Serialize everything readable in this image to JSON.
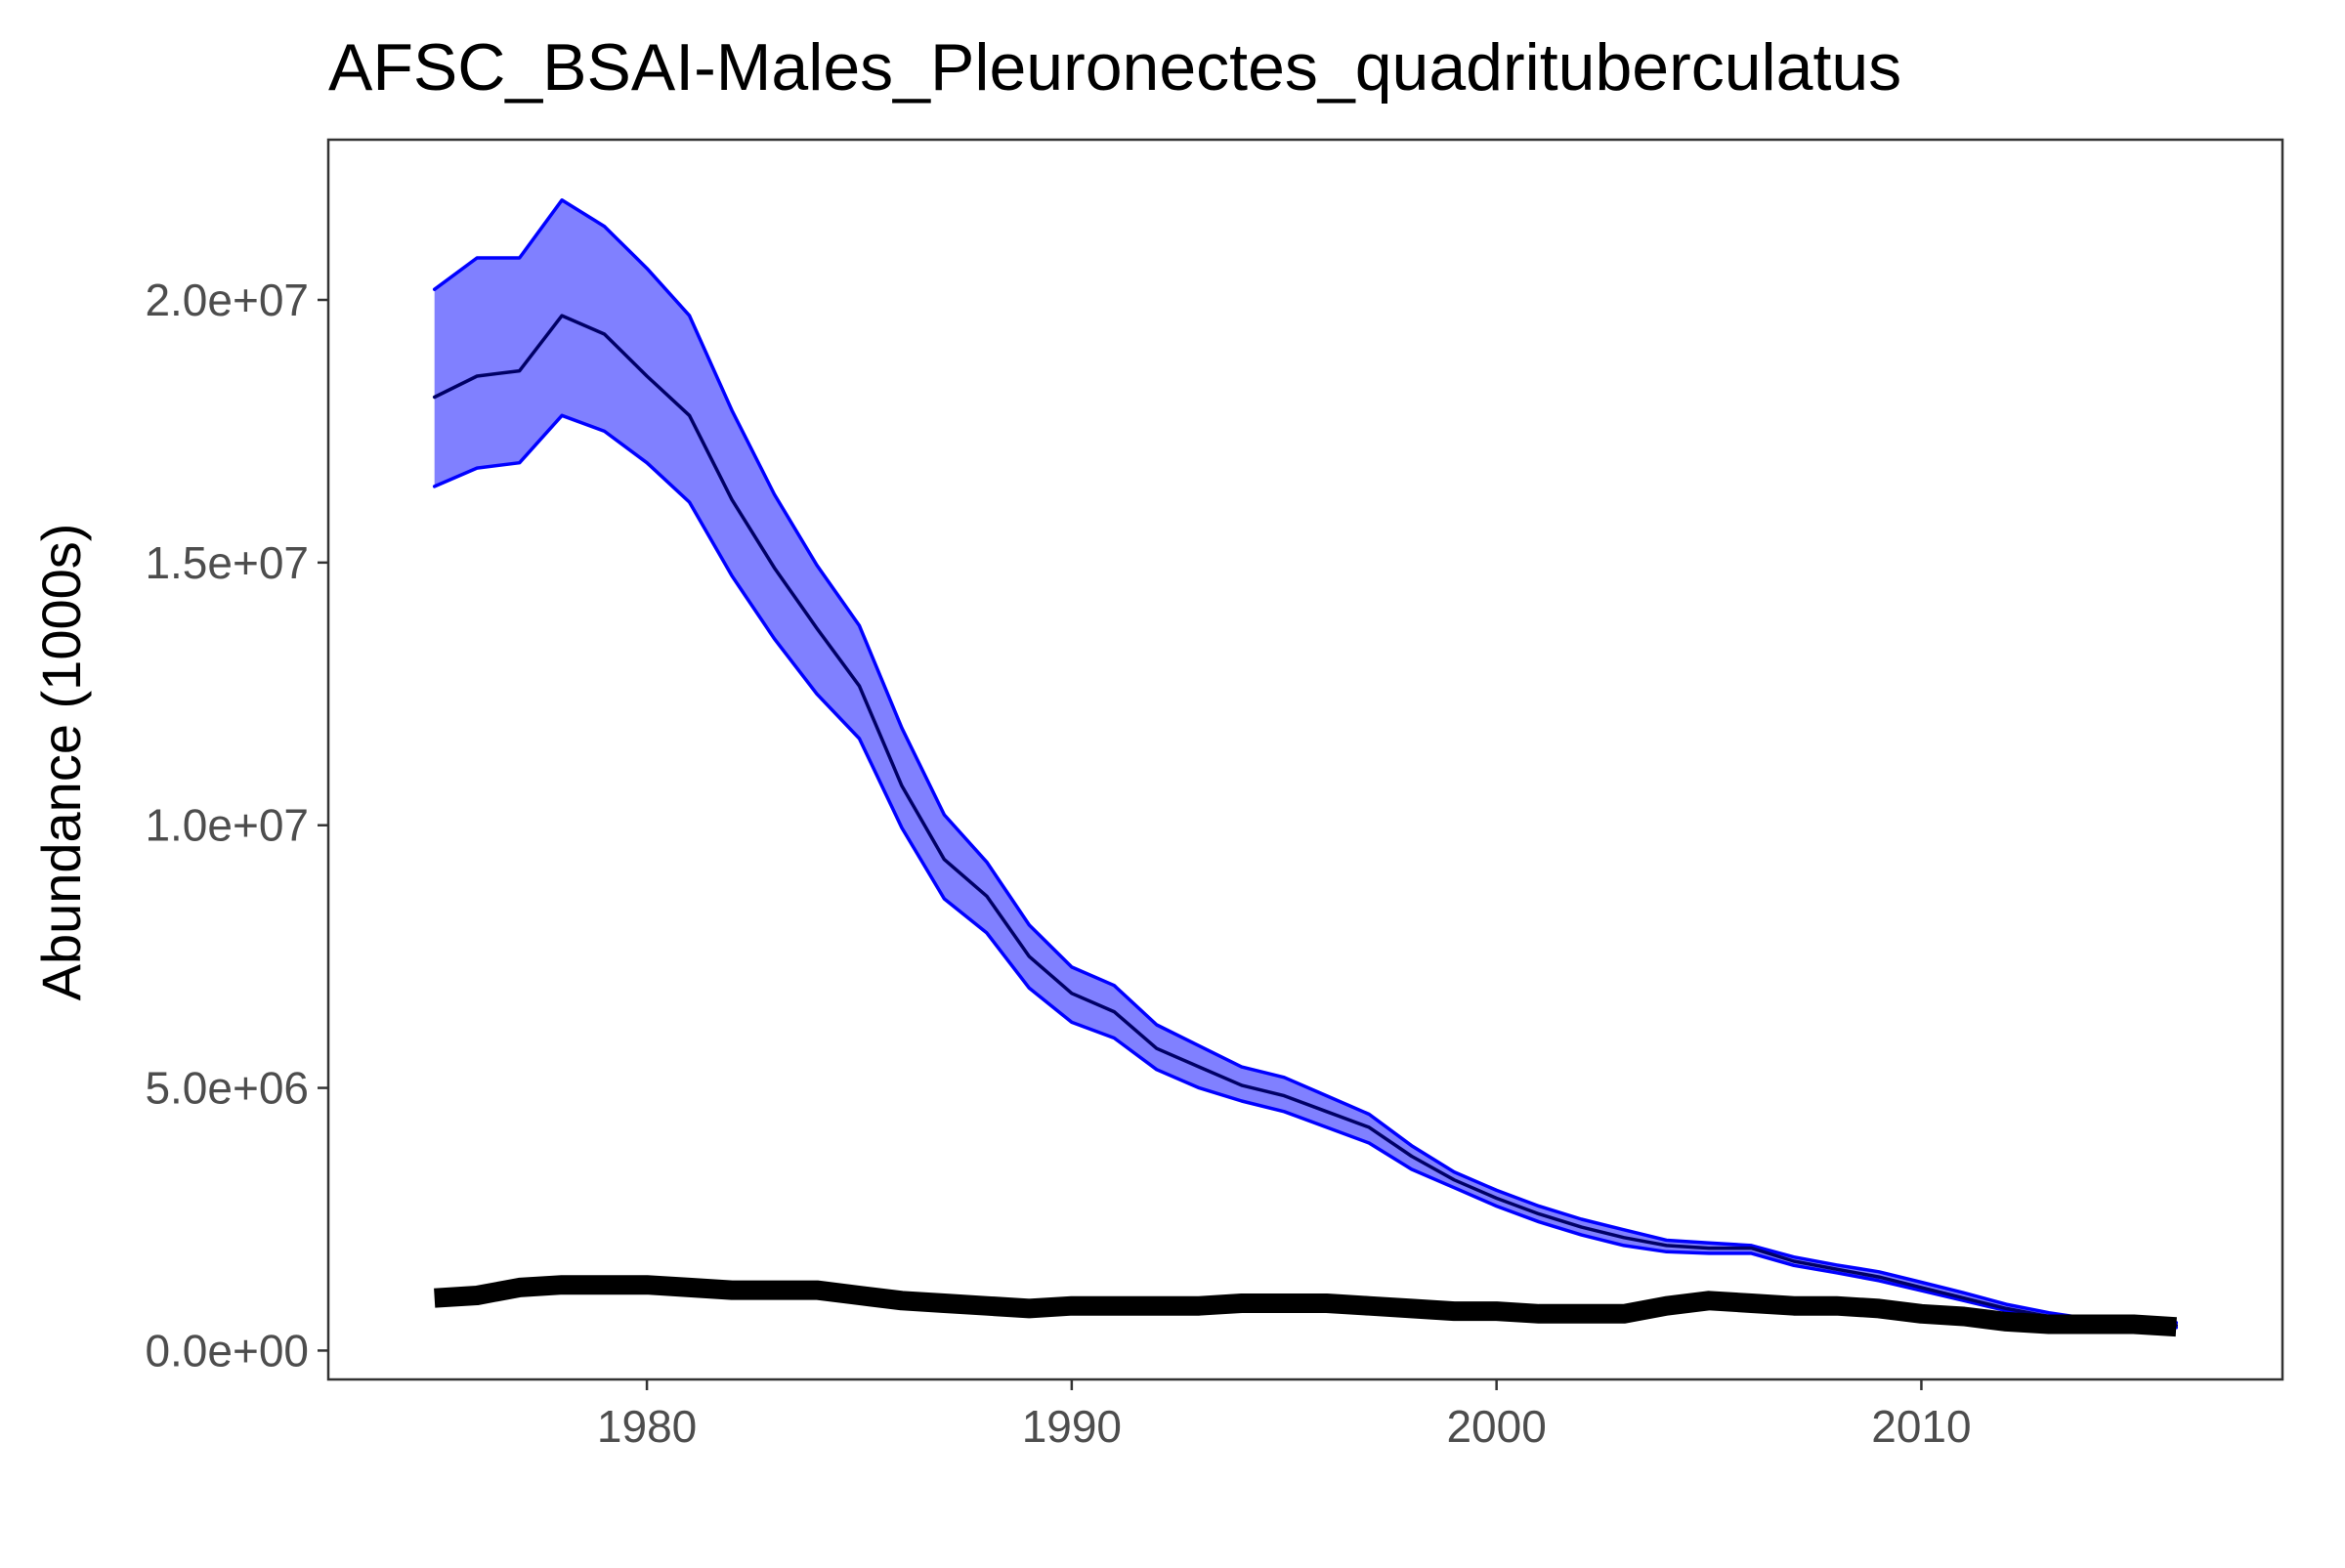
{
  "chart_data": {
    "type": "line",
    "title": "AFSC_BSAI-Males_Pleuronectes_quadrituberculatus",
    "xlabel": "",
    "ylabel": "Abundance (1000s)",
    "xlim": [
      1972.5,
      2018.5
    ],
    "ylim": [
      -550000,
      23050000
    ],
    "x_ticks": [
      1980,
      1990,
      2000,
      2010
    ],
    "x_tick_labels": [
      "1980",
      "1990",
      "2000",
      "2010"
    ],
    "y_ticks": [
      0,
      5000000,
      10000000,
      15000000,
      20000000
    ],
    "y_tick_labels": [
      "0.0e+00",
      "5.0e+06",
      "1.0e+07",
      "1.5e+07",
      "2.0e+07"
    ],
    "grid": false,
    "x": [
      1975,
      1976,
      1977,
      1978,
      1979,
      1980,
      1981,
      1982,
      1983,
      1984,
      1985,
      1986,
      1987,
      1988,
      1989,
      1990,
      1991,
      1992,
      1993,
      1994,
      1995,
      1996,
      1997,
      1998,
      1999,
      2000,
      2001,
      2002,
      2003,
      2004,
      2005,
      2006,
      2007,
      2008,
      2009,
      2010,
      2011,
      2012,
      2013,
      2014,
      2015,
      2016
    ],
    "series": [
      {
        "role": "estimate",
        "color": "#000066",
        "values": [
          18150000,
          18550000,
          18650000,
          19700000,
          19350000,
          18550000,
          17800000,
          16200000,
          14900000,
          13750000,
          12650000,
          10750000,
          9350000,
          8650000,
          7500000,
          6800000,
          6450000,
          5750000,
          5400000,
          5050000,
          4850000,
          4550000,
          4250000,
          3700000,
          3250000,
          2900000,
          2600000,
          2350000,
          2150000,
          2000000,
          1950000,
          1950000,
          1700000,
          1550000,
          1400000,
          1200000,
          1000000,
          800000,
          650000,
          550000,
          500000,
          480000
        ]
      },
      {
        "role": "upper",
        "color": "#0000ff",
        "values": [
          20200000,
          20800000,
          20800000,
          21900000,
          21400000,
          20600000,
          19700000,
          17900000,
          16300000,
          14950000,
          13800000,
          11850000,
          10200000,
          9300000,
          8100000,
          7300000,
          6950000,
          6200000,
          5800000,
          5400000,
          5200000,
          4850000,
          4500000,
          3900000,
          3400000,
          3050000,
          2750000,
          2500000,
          2300000,
          2100000,
          2050000,
          2000000,
          1780000,
          1630000,
          1500000,
          1300000,
          1100000,
          880000,
          720000,
          600000,
          550000,
          530000
        ]
      },
      {
        "role": "lower",
        "color": "#0000ff",
        "values": [
          16450000,
          16800000,
          16900000,
          17800000,
          17500000,
          16900000,
          16150000,
          14750000,
          13550000,
          12500000,
          11650000,
          9950000,
          8600000,
          7950000,
          6900000,
          6250000,
          5950000,
          5350000,
          5000000,
          4750000,
          4550000,
          4250000,
          3950000,
          3450000,
          3100000,
          2750000,
          2450000,
          2200000,
          2000000,
          1880000,
          1850000,
          1850000,
          1620000,
          1480000,
          1330000,
          1140000,
          950000,
          760000,
          600000,
          500000,
          460000,
          440000
        ]
      },
      {
        "role": "observed",
        "color": "#000000",
        "values": [
          1000000,
          1050000,
          1200000,
          1250000,
          1250000,
          1250000,
          1200000,
          1150000,
          1150000,
          1150000,
          1050000,
          950000,
          900000,
          850000,
          800000,
          850000,
          850000,
          850000,
          850000,
          900000,
          900000,
          900000,
          850000,
          800000,
          750000,
          750000,
          700000,
          700000,
          700000,
          850000,
          950000,
          900000,
          850000,
          850000,
          800000,
          700000,
          650000,
          550000,
          500000,
          500000,
          500000,
          450000
        ]
      }
    ],
    "band": {
      "fill": "#8080ff",
      "edge": "#0000ff"
    }
  }
}
